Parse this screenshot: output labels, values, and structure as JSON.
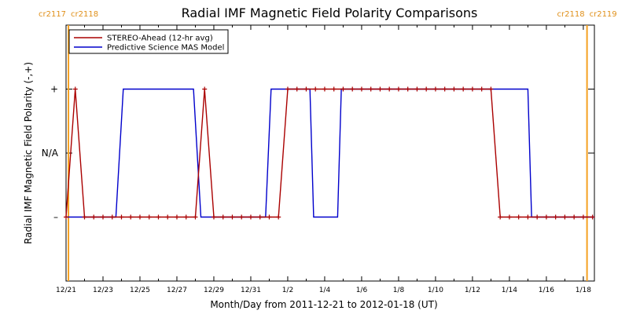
{
  "chart_data": {
    "type": "line",
    "title": "Radial IMF Magnetic Field Polarity Comparisons",
    "xlabel": "Month/Day from 2011-12-21 to 2012-01-18 (UT)",
    "ylabel": "Radial IMF Magnetic Field Polarity (-,+)",
    "x_unit": "day offset from 2011-12-21",
    "xlim": [
      0,
      28.6
    ],
    "ylim": [
      -2,
      2
    ],
    "x_ticks": [
      {
        "x": 0,
        "label": "12/21"
      },
      {
        "x": 2,
        "label": "12/23"
      },
      {
        "x": 4,
        "label": "12/25"
      },
      {
        "x": 6,
        "label": "12/27"
      },
      {
        "x": 8,
        "label": "12/29"
      },
      {
        "x": 10,
        "label": "12/31"
      },
      {
        "x": 12,
        "label": "1/2"
      },
      {
        "x": 14,
        "label": "1/4"
      },
      {
        "x": 16,
        "label": "1/6"
      },
      {
        "x": 18,
        "label": "1/8"
      },
      {
        "x": 20,
        "label": "1/10"
      },
      {
        "x": 22,
        "label": "1/12"
      },
      {
        "x": 24,
        "label": "1/14"
      },
      {
        "x": 26,
        "label": "1/16"
      },
      {
        "x": 28,
        "label": "1/18"
      }
    ],
    "y_ticks": [
      {
        "y": 1,
        "label": "+"
      },
      {
        "y": 0,
        "label": "N/A"
      },
      {
        "y": -1,
        "label": "–"
      }
    ],
    "grid": false,
    "legend_position": "top-left",
    "rotations": [
      {
        "x": 0.13,
        "left_label": "cr2117",
        "right_label": "cr2118"
      },
      {
        "x": 28.2,
        "left_label": "cr2118",
        "right_label": "cr2119"
      }
    ],
    "series": [
      {
        "name": "STEREO-Ahead (12-hr avg)",
        "color": "#aa0000",
        "marker": "plus",
        "points": [
          [
            0.0,
            -1
          ],
          [
            0.5,
            1
          ],
          [
            1.0,
            -1
          ],
          [
            1.5,
            -1
          ],
          [
            2.0,
            -1
          ],
          [
            2.5,
            -1
          ],
          [
            3.0,
            -1
          ],
          [
            3.5,
            -1
          ],
          [
            4.0,
            -1
          ],
          [
            4.5,
            -1
          ],
          [
            5.0,
            -1
          ],
          [
            5.5,
            -1
          ],
          [
            6.0,
            -1
          ],
          [
            6.5,
            -1
          ],
          [
            7.0,
            -1
          ],
          [
            7.5,
            1
          ],
          [
            8.0,
            -1
          ],
          [
            8.5,
            -1
          ],
          [
            9.0,
            -1
          ],
          [
            9.5,
            -1
          ],
          [
            10.0,
            -1
          ],
          [
            10.5,
            -1
          ],
          [
            11.0,
            -1
          ],
          [
            11.5,
            -1
          ],
          [
            12.0,
            1
          ],
          [
            12.5,
            1
          ],
          [
            13.0,
            1
          ],
          [
            13.5,
            1
          ],
          [
            14.0,
            1
          ],
          [
            14.5,
            1
          ],
          [
            15.0,
            1
          ],
          [
            15.5,
            1
          ],
          [
            16.0,
            1
          ],
          [
            16.5,
            1
          ],
          [
            17.0,
            1
          ],
          [
            17.5,
            1
          ],
          [
            18.0,
            1
          ],
          [
            18.5,
            1
          ],
          [
            19.0,
            1
          ],
          [
            19.5,
            1
          ],
          [
            20.0,
            1
          ],
          [
            20.5,
            1
          ],
          [
            21.0,
            1
          ],
          [
            21.5,
            1
          ],
          [
            22.0,
            1
          ],
          [
            22.5,
            1
          ],
          [
            23.0,
            1
          ],
          [
            23.5,
            -1
          ],
          [
            24.0,
            -1
          ],
          [
            24.5,
            -1
          ],
          [
            25.0,
            -1
          ],
          [
            25.5,
            -1
          ],
          [
            26.0,
            -1
          ],
          [
            26.5,
            -1
          ],
          [
            27.0,
            -1
          ],
          [
            27.5,
            -1
          ],
          [
            28.0,
            -1
          ],
          [
            28.5,
            -1
          ]
        ]
      },
      {
        "name": "Predictive Science MAS Model",
        "color": "#0000cc",
        "marker": "none",
        "points": [
          [
            0.0,
            -1
          ],
          [
            2.7,
            -1
          ],
          [
            3.1,
            1
          ],
          [
            6.9,
            1
          ],
          [
            7.3,
            -1
          ],
          [
            10.8,
            -1
          ],
          [
            11.1,
            1
          ],
          [
            13.2,
            1
          ],
          [
            13.4,
            -1
          ],
          [
            14.7,
            -1
          ],
          [
            14.9,
            1
          ],
          [
            25.0,
            1
          ],
          [
            25.2,
            -1
          ],
          [
            28.6,
            -1
          ]
        ]
      }
    ]
  }
}
